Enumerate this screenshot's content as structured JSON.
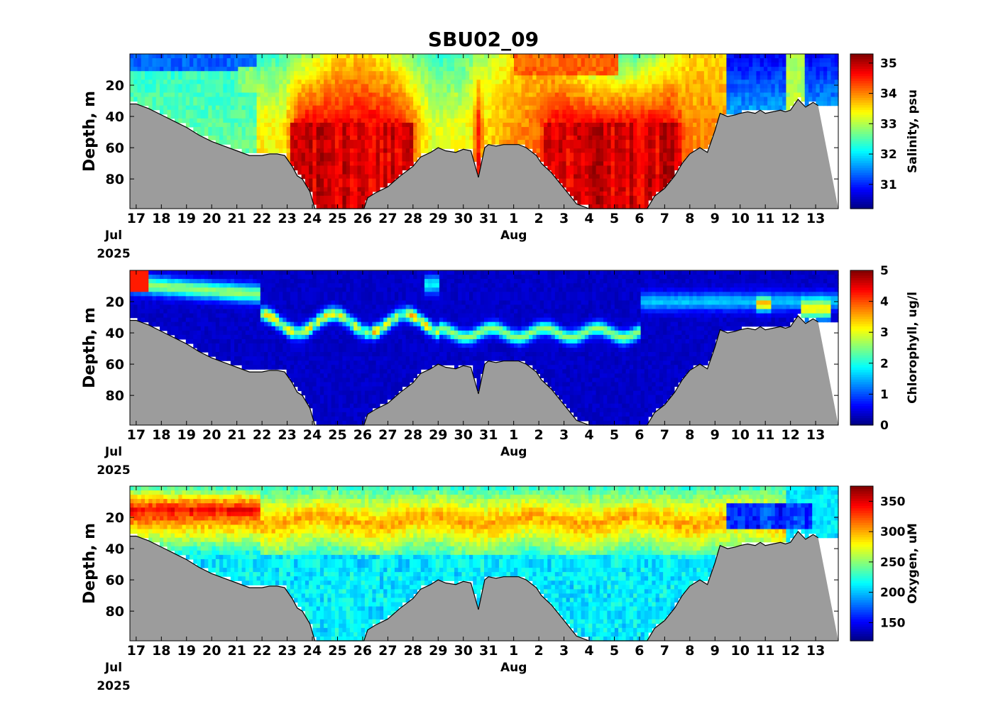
{
  "title": "SBU02_09",
  "colors": {
    "bottom_fill": "#9c9c9c",
    "bottom_line": "#000000",
    "colormap": "jet"
  },
  "chart_data": [
    {
      "type": "heatmap",
      "ylabel": "Depth, m",
      "colorbar_label": "Salinity, psu",
      "clim": [
        30.2,
        35.3
      ],
      "cbar_ticks": [
        31,
        32,
        33,
        34,
        35
      ],
      "y_ticks": [
        20,
        40,
        60,
        80
      ],
      "ylim": [
        0,
        99
      ],
      "x_ticks": [
        "17",
        "18",
        "19",
        "20",
        "21",
        "22",
        "23",
        "24",
        "25",
        "26",
        "27",
        "28",
        "29",
        "30",
        "31",
        "1",
        "2",
        "3",
        "4",
        "5",
        "6",
        "7",
        "8",
        "9",
        "10",
        "11",
        "12",
        "13"
      ],
      "month_labels": [
        {
          "text": "Jul",
          "date": "2025-07-17"
        },
        {
          "text": "Aug",
          "date": "2025-08-01"
        }
      ],
      "year_label": "2025",
      "x_range": [
        "2025-07-16T18:00",
        "2025-08-13T22:00"
      ]
    },
    {
      "type": "heatmap",
      "ylabel": "Depth, m",
      "colorbar_label": "Chlorophyll, ug/l",
      "clim": [
        0,
        5
      ],
      "cbar_ticks": [
        0,
        1,
        2,
        3,
        4,
        5
      ],
      "y_ticks": [
        20,
        40,
        60,
        80
      ],
      "ylim": [
        0,
        99
      ],
      "x_ticks": [
        "17",
        "18",
        "19",
        "20",
        "21",
        "22",
        "23",
        "24",
        "25",
        "26",
        "27",
        "28",
        "29",
        "30",
        "31",
        "1",
        "2",
        "3",
        "4",
        "5",
        "6",
        "7",
        "8",
        "9",
        "10",
        "11",
        "12",
        "13"
      ],
      "month_labels": [
        {
          "text": "Jul",
          "date": "2025-07-17"
        },
        {
          "text": "Aug",
          "date": "2025-08-01"
        }
      ],
      "year_label": "2025",
      "x_range": [
        "2025-07-16T18:00",
        "2025-08-13T22:00"
      ]
    },
    {
      "type": "heatmap",
      "ylabel": "Depth, m",
      "colorbar_label": "Oxygen, uM",
      "clim": [
        120,
        375
      ],
      "cbar_ticks": [
        150,
        200,
        250,
        300,
        350
      ],
      "y_ticks": [
        20,
        40,
        60,
        80
      ],
      "ylim": [
        0,
        99
      ],
      "x_ticks": [
        "17",
        "18",
        "19",
        "20",
        "21",
        "22",
        "23",
        "24",
        "25",
        "26",
        "27",
        "28",
        "29",
        "30",
        "31",
        "1",
        "2",
        "3",
        "4",
        "5",
        "6",
        "7",
        "8",
        "9",
        "10",
        "11",
        "12",
        "13"
      ],
      "month_labels": [
        {
          "text": "Jul",
          "date": "2025-07-17"
        },
        {
          "text": "Aug",
          "date": "2025-08-01"
        }
      ],
      "year_label": "2025",
      "x_range": [
        "2025-07-16T18:00",
        "2025-08-13T22:00"
      ]
    }
  ],
  "bathymetry": {
    "days": [
      0,
      0.5,
      1,
      1.5,
      2,
      2.5,
      3,
      3.5,
      4,
      4.5,
      5,
      5.3,
      5.6,
      5.9,
      6.2,
      6.4,
      6.6,
      6.9,
      7.1,
      7.5,
      8,
      8.5,
      8.9,
      9.05,
      9.2,
      9.5,
      10,
      10.5,
      11,
      11.3,
      11.7,
      12,
      12.3,
      12.7,
      13,
      13.3,
      13.6,
      13.85,
      14,
      14.3,
      14.6,
      15,
      15.2,
      15.5,
      15.9,
      16.1,
      16.5,
      17,
      17.5,
      18,
      18.5,
      19,
      19.4,
      19.6,
      20,
      20.3,
      20.6,
      21,
      21.4,
      21.7,
      22,
      22.4,
      22.7,
      23,
      23.2,
      23.5,
      23.8,
      24,
      24.3,
      24.6,
      24.8,
      25,
      25.3,
      25.6,
      25.8,
      26,
      26.3,
      26.6,
      26.9,
      27.1
    ],
    "depth_m": [
      32,
      35,
      39,
      43,
      47,
      52,
      56,
      59,
      62,
      65,
      65,
      64,
      64,
      65,
      72,
      78,
      80,
      88,
      99,
      99,
      99,
      99,
      99,
      99,
      92,
      89,
      85,
      78,
      72,
      66,
      63,
      60,
      62,
      63,
      61,
      62,
      79,
      60,
      58,
      59,
      58,
      58,
      58,
      60,
      65,
      70,
      76,
      86,
      96,
      99,
      99,
      99,
      99,
      99,
      99,
      99,
      91,
      86,
      78,
      70,
      64,
      60,
      63,
      49,
      38,
      40,
      39,
      38,
      37,
      38,
      36,
      38,
      37,
      36,
      37,
      36,
      29,
      34,
      31,
      33
    ]
  }
}
